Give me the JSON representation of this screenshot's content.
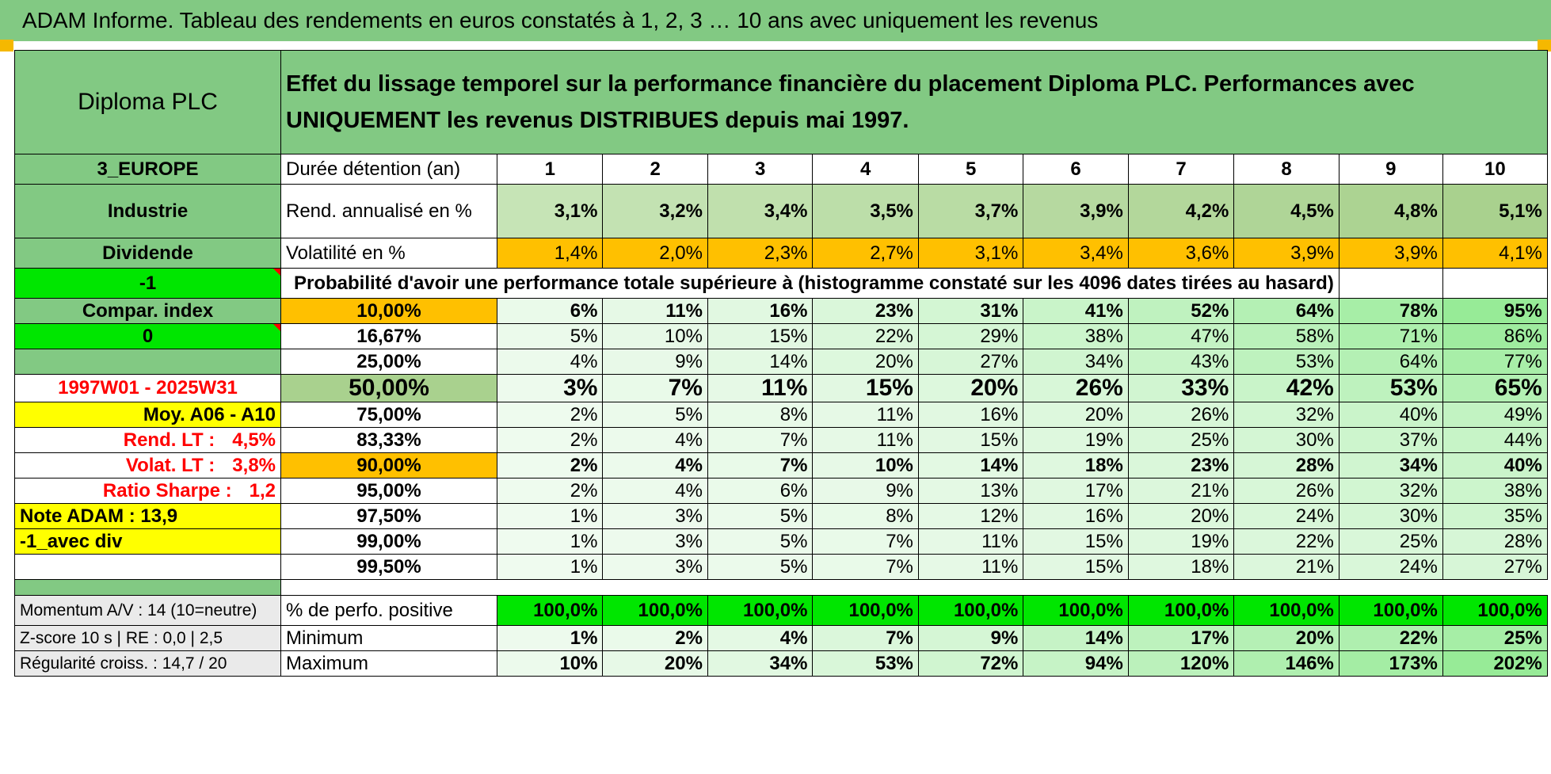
{
  "banner": "ADAM Informe. Tableau des rendements en euros constatés à 1, 2, 3 … 10 ans avec uniquement les revenus",
  "title_left": "Diploma PLC",
  "title_main": "Effet du lissage temporel sur la performance financière du placement Diploma PLC. Performances avec UNIQUEMENT les revenus DISTRIBUES depuis mai 1997.",
  "left": {
    "region": "3_EUROPE",
    "sector": "Industrie",
    "type": "Dividende",
    "flag1": "-1",
    "compar": "Compar. index",
    "flag2": "0",
    "period": "1997W01 - 2025W31",
    "moy": "Moy. A06 - A10",
    "rend_label": "Rend. LT :",
    "rend_value": "4,5%",
    "volat_label": "Volat. LT :",
    "volat_value": "3,8%",
    "sharpe_label": "Ratio Sharpe :",
    "sharpe_value": "1,2",
    "note": "Note ADAM : 13,9",
    "avec_div": "-1_avec div"
  },
  "durations_label": "Durée détention (an)",
  "durations": [
    "1",
    "2",
    "3",
    "4",
    "5",
    "6",
    "7",
    "8",
    "9",
    "10"
  ],
  "rend_label": "Rend. annualisé en %",
  "rend": [
    "3,1%",
    "3,2%",
    "3,4%",
    "3,5%",
    "3,7%",
    "3,9%",
    "4,2%",
    "4,5%",
    "4,8%",
    "5,1%"
  ],
  "vol_label": "Volatilité en %",
  "vol": [
    "1,4%",
    "2,0%",
    "2,3%",
    "2,7%",
    "3,1%",
    "3,4%",
    "3,6%",
    "3,9%",
    "3,9%",
    "4,1%"
  ],
  "prob_title": "Probabilité d'avoir une performance totale supérieure à (histogramme constaté sur les 4096 dates tirées au hasard)",
  "prob_rows": [
    {
      "threshold": "10,00%",
      "values": [
        "6%",
        "11%",
        "16%",
        "23%",
        "31%",
        "41%",
        "52%",
        "64%",
        "78%",
        "95%"
      ]
    },
    {
      "threshold": "16,67%",
      "values": [
        "5%",
        "10%",
        "15%",
        "22%",
        "29%",
        "38%",
        "47%",
        "58%",
        "71%",
        "86%"
      ]
    },
    {
      "threshold": "25,00%",
      "values": [
        "4%",
        "9%",
        "14%",
        "20%",
        "27%",
        "34%",
        "43%",
        "53%",
        "64%",
        "77%"
      ]
    },
    {
      "threshold": "50,00%",
      "values": [
        "3%",
        "7%",
        "11%",
        "15%",
        "20%",
        "26%",
        "33%",
        "42%",
        "53%",
        "65%"
      ]
    },
    {
      "threshold": "75,00%",
      "values": [
        "2%",
        "5%",
        "8%",
        "11%",
        "16%",
        "20%",
        "26%",
        "32%",
        "40%",
        "49%"
      ]
    },
    {
      "threshold": "83,33%",
      "values": [
        "2%",
        "4%",
        "7%",
        "11%",
        "15%",
        "19%",
        "25%",
        "30%",
        "37%",
        "44%"
      ]
    },
    {
      "threshold": "90,00%",
      "values": [
        "2%",
        "4%",
        "7%",
        "10%",
        "14%",
        "18%",
        "23%",
        "28%",
        "34%",
        "40%"
      ]
    },
    {
      "threshold": "95,00%",
      "values": [
        "2%",
        "4%",
        "6%",
        "9%",
        "13%",
        "17%",
        "21%",
        "26%",
        "32%",
        "38%"
      ]
    },
    {
      "threshold": "97,50%",
      "values": [
        "1%",
        "3%",
        "5%",
        "8%",
        "12%",
        "16%",
        "20%",
        "24%",
        "30%",
        "35%"
      ]
    },
    {
      "threshold": "99,00%",
      "values": [
        "1%",
        "3%",
        "5%",
        "7%",
        "11%",
        "15%",
        "19%",
        "22%",
        "25%",
        "28%"
      ]
    },
    {
      "threshold": "99,50%",
      "values": [
        "1%",
        "3%",
        "5%",
        "7%",
        "11%",
        "15%",
        "18%",
        "21%",
        "24%",
        "27%"
      ]
    }
  ],
  "bottom": [
    {
      "left": "Momentum A/V : 14 (10=neutre)",
      "label": "% de perfo. positive",
      "values": [
        "100,0%",
        "100,0%",
        "100,0%",
        "100,0%",
        "100,0%",
        "100,0%",
        "100,0%",
        "100,0%",
        "100,0%",
        "100,0%"
      ]
    },
    {
      "left": "Z-score 10 s | RE : 0,0 | 2,5",
      "label": "Minimum",
      "values": [
        "1%",
        "2%",
        "4%",
        "7%",
        "9%",
        "14%",
        "17%",
        "20%",
        "22%",
        "25%"
      ]
    },
    {
      "left": "Régularité croiss. : 14,7 / 20",
      "label": "Maximum",
      "values": [
        "10%",
        "20%",
        "34%",
        "53%",
        "72%",
        "94%",
        "120%",
        "146%",
        "173%",
        "202%"
      ]
    }
  ],
  "colors": {
    "header_green": "#82c983",
    "bright_green": "#00e600",
    "yellow": "#ffff00",
    "orange": "#ffc000",
    "red_text": "#ff0000",
    "light_green_min": "#f0fbf0",
    "light_green_max": "#87e887"
  }
}
